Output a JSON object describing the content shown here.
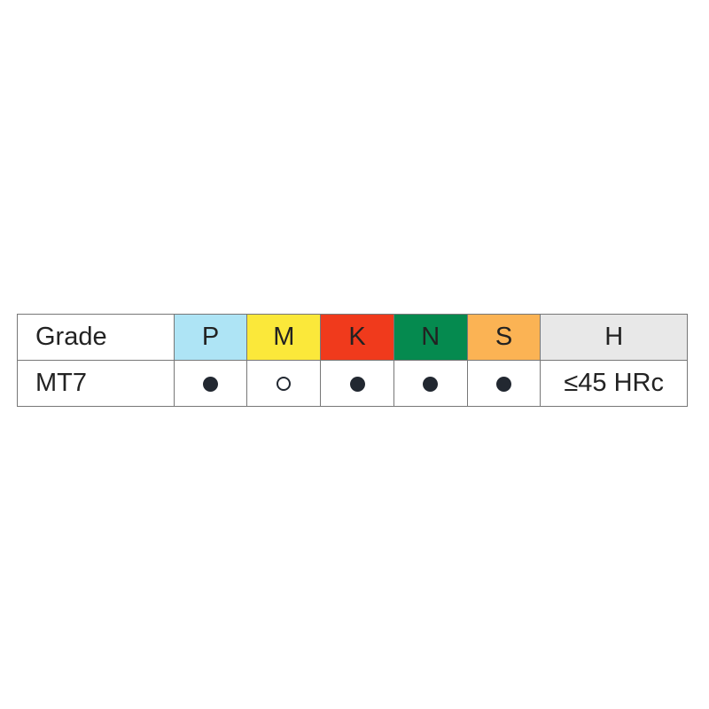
{
  "table": {
    "header": {
      "grade_label": "Grade",
      "materials": [
        {
          "label": "P",
          "color": "#aee4f5"
        },
        {
          "label": "M",
          "color": "#fbe83a"
        },
        {
          "label": "K",
          "color": "#f03a1c"
        },
        {
          "label": "N",
          "color": "#058a4f"
        },
        {
          "label": "S",
          "color": "#fbb354"
        }
      ],
      "h_label": "H",
      "h_color": "#e8e8e8"
    },
    "row": {
      "grade": "MT7",
      "suitability": [
        "filled",
        "open",
        "filled",
        "filled",
        "filled"
      ],
      "h_value": "≤45 HRc"
    }
  }
}
